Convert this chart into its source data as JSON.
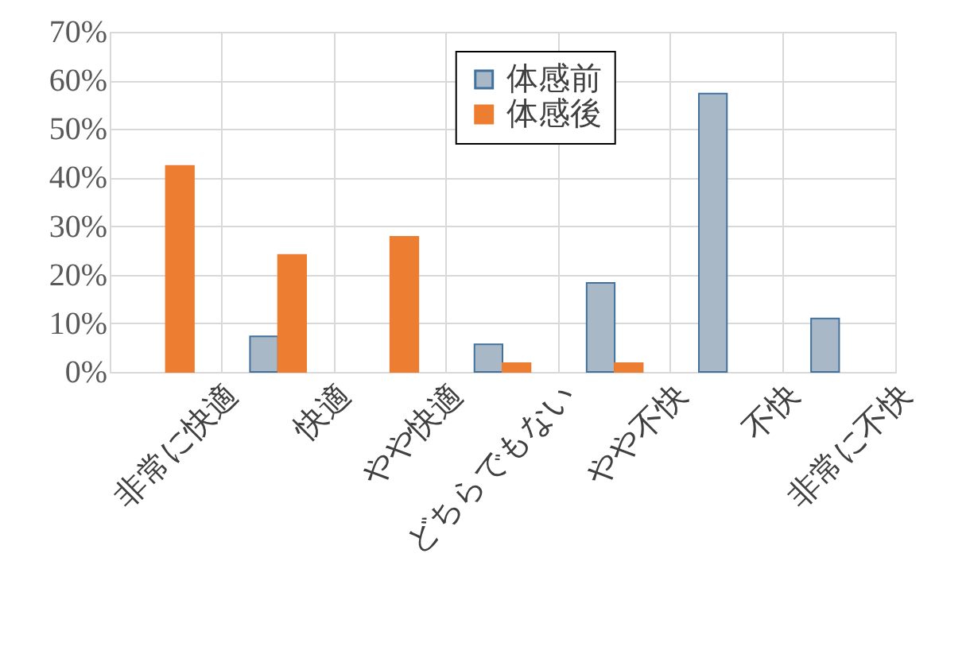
{
  "chart_data": {
    "type": "bar",
    "categories": [
      "非常に快適",
      "快適",
      "やや快適",
      "どちらでもない",
      "やや不快",
      "不快",
      "非常に不快"
    ],
    "series": [
      {
        "name": "体感前",
        "color": "#a9b8c6",
        "values": [
          null,
          7.3,
          null,
          5.7,
          18.3,
          57.3,
          11.0
        ]
      },
      {
        "name": "体感後",
        "color": "#ed7d31",
        "values": [
          42.4,
          24.1,
          27.8,
          1.8,
          1.8,
          null,
          null
        ]
      }
    ],
    "ylim": [
      0,
      70
    ],
    "yticks": [
      {
        "value": 0,
        "label": "0%"
      },
      {
        "value": 10,
        "label": "10%"
      },
      {
        "value": 20,
        "label": "20%"
      },
      {
        "value": 30,
        "label": "30%"
      },
      {
        "value": 40,
        "label": "40%"
      },
      {
        "value": 50,
        "label": "50%"
      },
      {
        "value": 60,
        "label": "60%"
      },
      {
        "value": 70,
        "label": "70%"
      }
    ],
    "grid": true,
    "legend": "top right"
  }
}
